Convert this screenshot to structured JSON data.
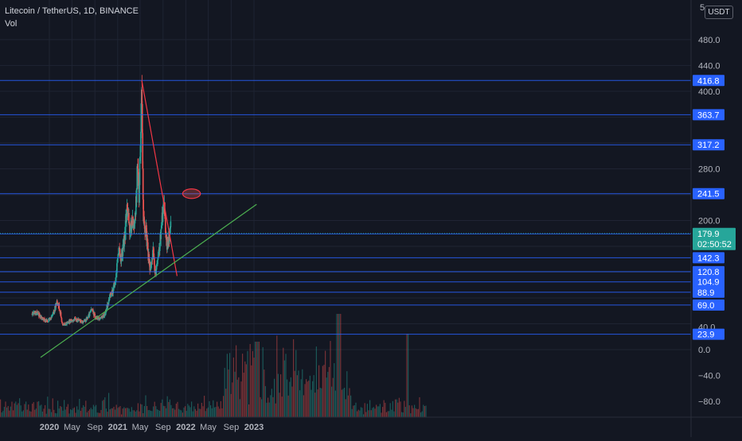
{
  "header": {
    "symbol": "Litecoin / TetherUS, 1D, BINANCE",
    "indicator": "Vol",
    "currency": "USDT",
    "axis_cut": "5"
  },
  "colors": {
    "background": "#131722",
    "grid": "#1f2433",
    "up": "#26a69a",
    "down": "#ef5350",
    "level_line": "#2962ff",
    "trend_line": "#f23645",
    "support_line": "#4caf50",
    "price_tag": "#26a69a"
  },
  "chart_data": {
    "type": "candlestick",
    "x_ticks": [
      "2020",
      "May",
      "Sep",
      "2021",
      "May",
      "Sep",
      "2022",
      "May",
      "Sep",
      "2023"
    ],
    "y_ticks": [
      "480.0",
      "440.0",
      "400.0",
      "280.0",
      "200.0",
      "0.0",
      "−40.0",
      "−80.0"
    ],
    "ylim": [
      -90,
      490
    ],
    "levels": [
      416.8,
      363.7,
      317.2,
      241.5,
      179.2,
      142.3,
      120.8,
      104.9,
      88.9,
      69.0,
      23.9
    ],
    "level_labels": [
      "416.8",
      "363.7",
      "317.2",
      "241.5",
      "179.2",
      "142.3",
      "120.8",
      "104.9",
      "88.9",
      "69.0",
      "23.9"
    ],
    "partial_tick": "40.0",
    "current_price": {
      "value": 179.9,
      "label": "179.9",
      "countdown": "02:50:52"
    },
    "resistance_trendline": [
      {
        "date": "2021-05-10",
        "price": 416.8
      },
      {
        "date": "2021-11-15",
        "price": 114
      }
    ],
    "support_trendline": [
      {
        "date": "2019-11-15",
        "price": -12
      },
      {
        "date": "2023-01-15",
        "price": 225
      }
    ],
    "target_zone": {
      "start": "2021-12-15",
      "end": "2022-03-20",
      "price": 241.5
    },
    "price_path": [
      [
        "2019-10-01",
        56
      ],
      [
        "2019-10-20",
        58
      ],
      [
        "2019-11-10",
        53
      ],
      [
        "2019-12-01",
        47
      ],
      [
        "2019-12-20",
        44
      ],
      [
        "2020-01-10",
        48
      ],
      [
        "2020-01-25",
        58
      ],
      [
        "2020-02-12",
        76
      ],
      [
        "2020-02-25",
        63
      ],
      [
        "2020-03-12",
        38
      ],
      [
        "2020-03-25",
        40
      ],
      [
        "2020-04-15",
        43
      ],
      [
        "2020-05-10",
        47
      ],
      [
        "2020-06-05",
        46
      ],
      [
        "2020-07-01",
        42
      ],
      [
        "2020-07-25",
        50
      ],
      [
        "2020-08-15",
        62
      ],
      [
        "2020-09-05",
        50
      ],
      [
        "2020-10-01",
        48
      ],
      [
        "2020-10-25",
        55
      ],
      [
        "2020-11-15",
        78
      ],
      [
        "2020-12-01",
        88
      ],
      [
        "2020-12-20",
        105
      ],
      [
        "2021-01-05",
        155
      ],
      [
        "2021-01-20",
        140
      ],
      [
        "2021-02-10",
        180
      ],
      [
        "2021-02-20",
        230
      ],
      [
        "2021-03-05",
        185
      ],
      [
        "2021-03-20",
        195
      ],
      [
        "2021-04-05",
        200
      ],
      [
        "2021-04-18",
        290
      ],
      [
        "2021-04-25",
        240
      ],
      [
        "2021-05-05",
        340
      ],
      [
        "2021-05-10",
        410
      ],
      [
        "2021-05-19",
        200
      ],
      [
        "2021-06-01",
        185
      ],
      [
        "2021-06-21",
        125
      ],
      [
        "2021-07-10",
        150
      ],
      [
        "2021-07-20",
        115
      ],
      [
        "2021-08-05",
        140
      ],
      [
        "2021-08-20",
        180
      ],
      [
        "2021-09-07",
        235
      ],
      [
        "2021-09-15",
        180
      ],
      [
        "2021-09-22",
        160
      ],
      [
        "2021-10-05",
        175
      ],
      [
        "2021-10-12",
        188
      ]
    ]
  }
}
